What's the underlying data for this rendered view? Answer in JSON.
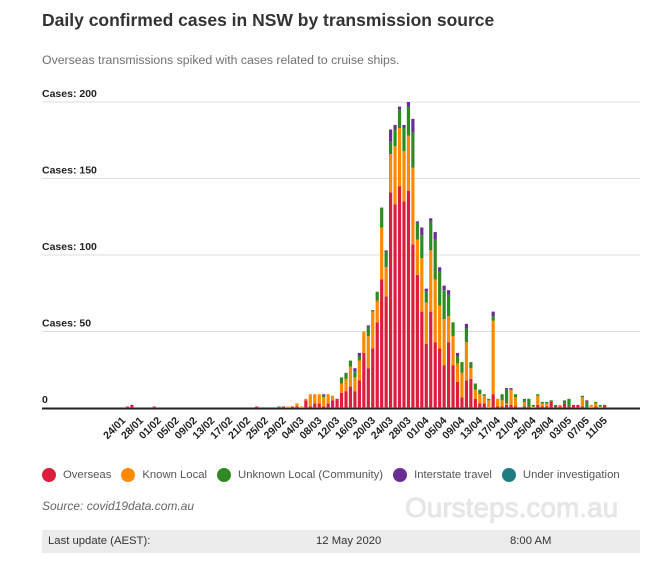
{
  "header": {
    "title": "Daily confirmed cases in NSW by transmission source",
    "subtitle": "Overseas transmissions spiked with cases related to cruise ships."
  },
  "chart_data": {
    "type": "bar",
    "stacked": true,
    "title": "Daily confirmed cases in NSW by transmission source",
    "xlabel": "",
    "ylabel": "",
    "ylim": [
      0,
      200
    ],
    "y_ticks": [
      {
        "value": 0,
        "label": "0"
      },
      {
        "value": 50,
        "label": "Cases: 50"
      },
      {
        "value": 100,
        "label": "Cases: 100"
      },
      {
        "value": 150,
        "label": "Cases: 150"
      },
      {
        "value": 200,
        "label": "Cases: 200"
      }
    ],
    "grid": true,
    "legend": "bottom",
    "x_start": "24/01/2020",
    "x_tick_labels": [
      "24/01",
      "28/01",
      "01/02",
      "05/02",
      "09/02",
      "13/02",
      "17/02",
      "21/02",
      "25/02",
      "29/02",
      "04/03",
      "08/03",
      "12/03",
      "16/03",
      "20/03",
      "24/03",
      "28/03",
      "01/04",
      "05/04",
      "09/04",
      "13/04",
      "17/04",
      "21/04",
      "25/04",
      "29/04",
      "03/05",
      "07/05",
      "11/05"
    ],
    "series": [
      {
        "name": "Overseas",
        "color": "#dc1e3c"
      },
      {
        "name": "Known Local",
        "color": "#ff8a00"
      },
      {
        "name": "Unknown Local (Community)",
        "color": "#2e8a22"
      },
      {
        "name": "Interstate travel",
        "color": "#6a2c96"
      },
      {
        "name": "Under investigation",
        "color": "#1f7c80"
      }
    ],
    "daily": [
      [
        "24/01",
        0,
        0,
        0,
        0,
        0
      ],
      [
        "25/01",
        1,
        0,
        0,
        0,
        0
      ],
      [
        "26/01",
        2,
        0,
        0,
        0,
        0
      ],
      [
        "27/01",
        0,
        0,
        0,
        0,
        0
      ],
      [
        "28/01",
        0,
        0,
        0,
        0,
        0
      ],
      [
        "29/01",
        0,
        0,
        0,
        0,
        0
      ],
      [
        "30/01",
        0,
        0,
        0,
        0,
        0
      ],
      [
        "31/01",
        1,
        0,
        0,
        0,
        0
      ],
      [
        "01/02",
        0,
        0,
        0,
        0,
        0
      ],
      [
        "02/02",
        0,
        0,
        0,
        0,
        0
      ],
      [
        "03/02",
        0,
        0,
        0,
        0,
        0
      ],
      [
        "04/02",
        0,
        0,
        0,
        0,
        0
      ],
      [
        "05/02",
        0,
        0,
        0,
        0,
        0
      ],
      [
        "06/02",
        0,
        0,
        0,
        0,
        0
      ],
      [
        "07/02",
        0,
        0,
        0,
        0,
        0
      ],
      [
        "08/02",
        0,
        0,
        0,
        0,
        0
      ],
      [
        "09/02",
        0,
        0,
        0,
        0,
        0
      ],
      [
        "10/02",
        0,
        0,
        0,
        0,
        0
      ],
      [
        "11/02",
        0,
        0,
        0,
        0,
        0
      ],
      [
        "12/02",
        0,
        0,
        0,
        0,
        0
      ],
      [
        "13/02",
        0,
        0,
        0,
        0,
        0
      ],
      [
        "14/02",
        0,
        0,
        0,
        0,
        0
      ],
      [
        "15/02",
        0,
        0,
        0,
        0,
        0
      ],
      [
        "16/02",
        0,
        0,
        0,
        0,
        0
      ],
      [
        "17/02",
        0,
        0,
        0,
        0,
        0
      ],
      [
        "18/02",
        0,
        0,
        0,
        0,
        0
      ],
      [
        "19/02",
        0,
        0,
        0,
        0,
        0
      ],
      [
        "20/02",
        0,
        0,
        0,
        0,
        0
      ],
      [
        "21/02",
        0,
        0,
        0,
        0,
        0
      ],
      [
        "22/02",
        0,
        0,
        0,
        0,
        0
      ],
      [
        "23/02",
        1,
        0,
        0,
        0,
        0
      ],
      [
        "24/02",
        0,
        0,
        0,
        0,
        0
      ],
      [
        "25/02",
        0,
        0,
        0,
        0,
        0
      ],
      [
        "26/02",
        0,
        0,
        0,
        0,
        0
      ],
      [
        "27/02",
        0,
        0,
        0,
        0,
        0
      ],
      [
        "28/02",
        0,
        0,
        1,
        0,
        0
      ],
      [
        "29/02",
        1,
        0,
        0,
        0,
        0
      ],
      [
        "01/03",
        0,
        1,
        0,
        0,
        0
      ],
      [
        "02/03",
        1,
        0,
        0,
        0,
        0
      ],
      [
        "03/03",
        1,
        2,
        0,
        0,
        0
      ],
      [
        "04/03",
        0,
        1,
        0,
        0,
        0
      ],
      [
        "05/03",
        5,
        1,
        0,
        0,
        0
      ],
      [
        "06/03",
        1,
        8,
        0,
        0,
        0
      ],
      [
        "07/03",
        3,
        6,
        0,
        0,
        0
      ],
      [
        "08/03",
        3,
        6,
        0,
        0,
        0
      ],
      [
        "09/03",
        1,
        6,
        1,
        1,
        0
      ],
      [
        "10/03",
        3,
        6,
        0,
        0,
        0
      ],
      [
        "11/03",
        5,
        3,
        0,
        0,
        0
      ],
      [
        "12/03",
        6,
        0,
        0,
        0,
        0
      ],
      [
        "13/03",
        10,
        6,
        4,
        0,
        0
      ],
      [
        "14/03",
        11,
        8,
        4,
        0,
        0
      ],
      [
        "15/03",
        14,
        13,
        4,
        0,
        0
      ],
      [
        "16/03",
        11,
        9,
        4,
        2,
        0
      ],
      [
        "17/03",
        18,
        13,
        3,
        2,
        0
      ],
      [
        "18/03",
        36,
        14,
        0,
        0,
        0
      ],
      [
        "19/03",
        26,
        21,
        6,
        1,
        0
      ],
      [
        "20/03",
        39,
        24,
        1,
        0,
        0
      ],
      [
        "21/03",
        56,
        14,
        6,
        0,
        0
      ],
      [
        "22/03",
        84,
        34,
        13,
        0,
        0
      ],
      [
        "23/03",
        73,
        19,
        10,
        1,
        0
      ],
      [
        "24/03",
        141,
        25,
        8,
        8,
        0
      ],
      [
        "25/03",
        133,
        38,
        11,
        3,
        0
      ],
      [
        "26/03",
        145,
        38,
        12,
        2,
        0
      ],
      [
        "27/03",
        135,
        33,
        15,
        2,
        0
      ],
      [
        "28/03",
        142,
        36,
        19,
        3,
        0
      ],
      [
        "29/03",
        107,
        50,
        23,
        9,
        0
      ],
      [
        "30/03",
        87,
        23,
        11,
        1,
        0
      ],
      [
        "31/03",
        63,
        35,
        15,
        5,
        0
      ],
      [
        "01/04",
        42,
        27,
        7,
        2,
        0
      ],
      [
        "02/04",
        63,
        40,
        19,
        2,
        0
      ],
      [
        "03/04",
        43,
        41,
        26,
        5,
        0
      ],
      [
        "04/04",
        39,
        28,
        22,
        3,
        0
      ],
      [
        "05/04",
        28,
        30,
        19,
        3,
        0
      ],
      [
        "06/04",
        43,
        17,
        14,
        3,
        0
      ],
      [
        "07/04",
        28,
        19,
        9,
        0,
        0
      ],
      [
        "08/04",
        17,
        12,
        5,
        2,
        0
      ],
      [
        "09/04",
        7,
        16,
        7,
        0,
        0
      ],
      [
        "10/04",
        18,
        25,
        9,
        3,
        0
      ],
      [
        "11/04",
        19,
        7,
        4,
        0,
        0
      ],
      [
        "12/04",
        6,
        6,
        4,
        0,
        0
      ],
      [
        "13/04",
        3,
        6,
        3,
        0,
        0
      ],
      [
        "14/04",
        3,
        5,
        1,
        0,
        0
      ],
      [
        "15/04",
        0,
        5,
        1,
        0,
        0
      ],
      [
        "16/04",
        9,
        48,
        3,
        3,
        0
      ],
      [
        "17/04",
        1,
        5,
        0,
        0,
        0
      ],
      [
        "18/04",
        1,
        4,
        4,
        0,
        0
      ],
      [
        "19/04",
        2,
        1,
        9,
        1,
        0
      ],
      [
        "20/04",
        2,
        10,
        0,
        1,
        0
      ],
      [
        "21/04",
        1,
        6,
        2,
        0,
        0
      ],
      [
        "22/04",
        0,
        0,
        0,
        0,
        0
      ],
      [
        "23/04",
        1,
        3,
        2,
        0,
        0
      ],
      [
        "24/04",
        1,
        0,
        5,
        0,
        0
      ],
      [
        "25/04",
        0,
        1,
        1,
        0,
        0
      ],
      [
        "26/04",
        2,
        6,
        1,
        0,
        0
      ],
      [
        "27/04",
        1,
        2,
        1,
        0,
        0
      ],
      [
        "28/04",
        1,
        2,
        1,
        0,
        0
      ],
      [
        "29/04",
        4,
        0,
        1,
        0,
        0
      ],
      [
        "30/04",
        1,
        0,
        1,
        0,
        0
      ],
      [
        "01/05",
        1,
        1,
        0,
        0,
        0
      ],
      [
        "02/05",
        3,
        0,
        2,
        0,
        0
      ],
      [
        "03/05",
        1,
        0,
        5,
        0,
        0
      ],
      [
        "04/05",
        2,
        0,
        0,
        0,
        0
      ],
      [
        "05/05",
        2,
        0,
        0,
        0,
        0
      ],
      [
        "06/05",
        1,
        6,
        1,
        0,
        0
      ],
      [
        "07/05",
        0,
        0,
        4,
        1,
        0
      ],
      [
        "08/05",
        0,
        2,
        0,
        0,
        0
      ],
      [
        "09/05",
        1,
        2,
        1,
        0,
        0
      ],
      [
        "10/05",
        0,
        1,
        1,
        0,
        0
      ],
      [
        "11/05",
        2,
        0,
        0,
        0,
        0
      ]
    ]
  },
  "legend": {
    "items": [
      {
        "label": "Overseas",
        "color": "#dc1e3c"
      },
      {
        "label": "Known Local",
        "color": "#ff8a00"
      },
      {
        "label": "Unknown Local (Community)",
        "color": "#2e8a22"
      },
      {
        "label": "Interstate travel",
        "color": "#6a2c96"
      },
      {
        "label": "Under investigation",
        "color": "#1f7c80"
      }
    ]
  },
  "source": "Source: covid19data.com.au",
  "footer": {
    "label": "Last update (AEST):",
    "date": "12 May 2020",
    "time": "8:00 AM"
  },
  "watermark": "Oursteps.com.au"
}
